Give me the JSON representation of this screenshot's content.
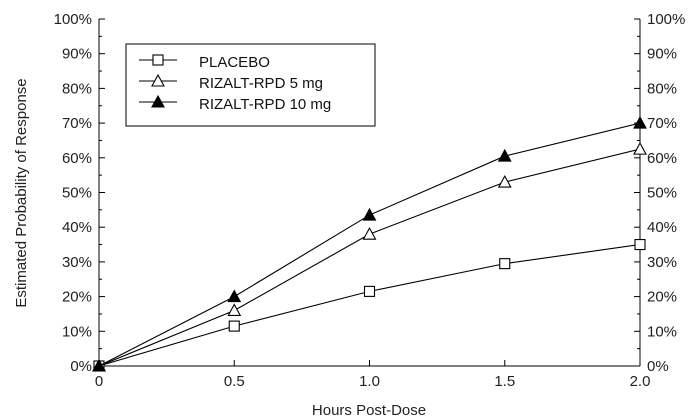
{
  "chart_data": {
    "type": "line",
    "title": "",
    "xlabel": "Hours Post-Dose",
    "ylabel": "Estimated Probability of Response",
    "x": [
      0,
      0.5,
      1.0,
      1.5,
      2.0
    ],
    "x_tick_labels": [
      "0",
      "0.5",
      "1.0",
      "1.5",
      "2.0"
    ],
    "y_tick_labels": [
      "0%",
      "10%",
      "20%",
      "30%",
      "40%",
      "50%",
      "60%",
      "70%",
      "80%",
      "90%",
      "100%"
    ],
    "xlim": [
      0,
      2.0
    ],
    "ylim": [
      0,
      100
    ],
    "y_unit": "%",
    "grid": false,
    "legend_position": "top-left",
    "right_axis_mirrors_left": true,
    "series": [
      {
        "name": "PLACEBO",
        "marker": "open-square",
        "values": [
          0,
          11.5,
          21.5,
          29.5,
          35
        ]
      },
      {
        "name": "RIZALT-RPD 5 mg",
        "marker": "open-triangle",
        "values": [
          0,
          16,
          38,
          53,
          62.5
        ]
      },
      {
        "name": "RIZALT-RPD 10 mg",
        "marker": "filled-triangle",
        "values": [
          0,
          20,
          43.5,
          60.5,
          70
        ]
      }
    ],
    "colors": {
      "line": "#000000",
      "text": "#222222",
      "background": "#ffffff"
    }
  }
}
